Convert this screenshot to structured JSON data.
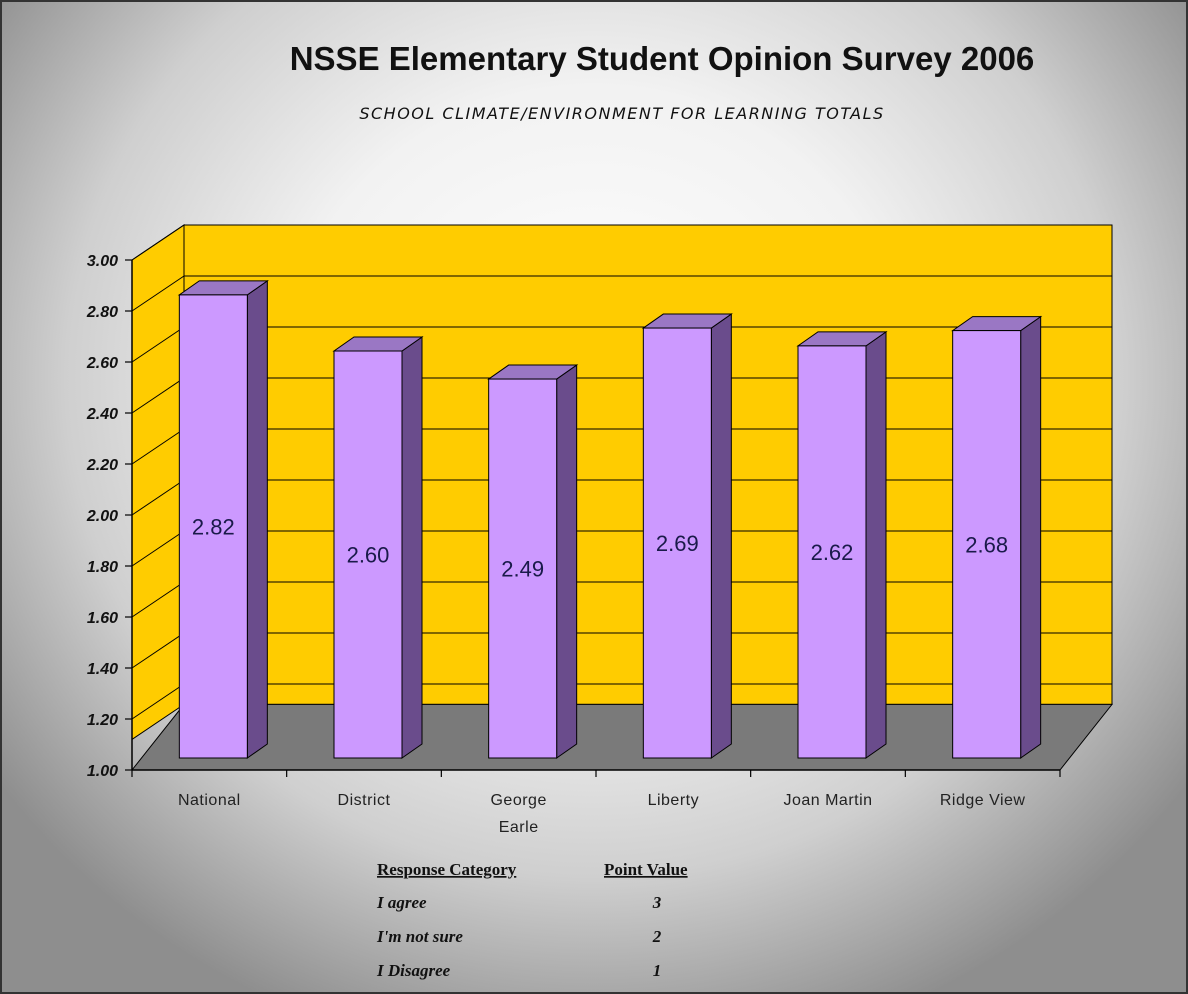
{
  "chart_data": {
    "type": "bar",
    "title": "NSSE Elementary Student Opinion Survey 2006",
    "subtitle": "SCHOOL CLIMATE/ENVIRONMENT FOR LEARNING TOTALS",
    "categories": [
      "National",
      "District",
      "George Earle",
      "Liberty",
      "Joan Martin",
      "Ridge View"
    ],
    "values": [
      2.82,
      2.6,
      2.49,
      2.69,
      2.62,
      2.68
    ],
    "data_labels": [
      "2.82",
      "2.60",
      "2.49",
      "2.69",
      "2.62",
      "2.68"
    ],
    "yticks": [
      "1.00",
      "1.20",
      "1.40",
      "1.60",
      "1.80",
      "2.00",
      "2.20",
      "2.40",
      "2.60",
      "2.80",
      "3.00"
    ],
    "ylim": [
      1.0,
      3.0
    ],
    "xlabel": "",
    "ylabel": "",
    "grid": true,
    "three_d": true,
    "colors": {
      "bar_front": "#cc99ff",
      "bar_side": "#6a4c8c",
      "bar_top": "#9a77c4",
      "back_wall": "#ffcc00",
      "side_wall": "#ffcc00",
      "floor": "#7a7a7a"
    }
  },
  "key_table": {
    "headers": [
      "Response Category",
      "Point Value"
    ],
    "rows": [
      {
        "category": "I agree",
        "value": "3"
      },
      {
        "category": "I'm not sure",
        "value": "2"
      },
      {
        "category": "I Disagree",
        "value": "1"
      }
    ]
  }
}
